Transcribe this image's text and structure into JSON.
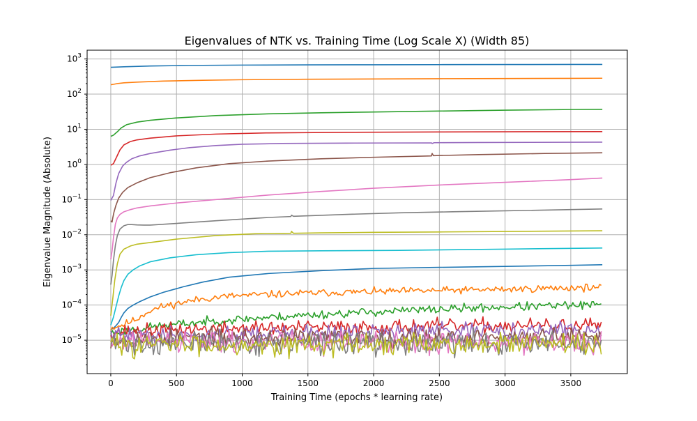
{
  "chart_data": {
    "type": "line",
    "title": "Eigenvalues of NTK vs. Training Time (Log Scale X) (Width 85)",
    "xlabel": "Training Time (epochs * learning rate)",
    "ylabel": "Eigenvalue Magnitude (Absolute)",
    "xlim": [
      -180,
      3930
    ],
    "ylim_log10": [
      -5.95,
      3.25
    ],
    "yscale": "log",
    "grid": true,
    "legend": "none",
    "x_ticks": [
      0,
      500,
      1000,
      1500,
      2000,
      2500,
      3000,
      3500
    ],
    "x_tick_labels": [
      "0",
      "500",
      "1000",
      "1500",
      "2000",
      "2500",
      "3000",
      "3500"
    ],
    "y_tick_exponents": [
      -5,
      -4,
      -3,
      -2,
      -1,
      0,
      1,
      2,
      3
    ],
    "y_tick_labels": [
      {
        "base": "10",
        "exp": "−5"
      },
      {
        "base": "10",
        "exp": "−4"
      },
      {
        "base": "10",
        "exp": "−3"
      },
      {
        "base": "10",
        "exp": "−2"
      },
      {
        "base": "10",
        "exp": "−1"
      },
      {
        "base": "10",
        "exp": "0"
      },
      {
        "base": "10",
        "exp": "1"
      },
      {
        "base": "10",
        "exp": "2"
      },
      {
        "base": "10",
        "exp": "3"
      }
    ],
    "series": [
      {
        "color": "#1f77b4",
        "noisy": false,
        "x": [
          0,
          100,
          300,
          600,
          1000,
          1500,
          2000,
          2500,
          3000,
          3500,
          3740
        ],
        "y": [
          580,
          600,
          630,
          655,
          670,
          680,
          685,
          690,
          695,
          698,
          700
        ]
      },
      {
        "color": "#ff7f0e",
        "noisy": false,
        "x": [
          0,
          20,
          50,
          100,
          200,
          400,
          700,
          1000,
          1500,
          2000,
          2500,
          3000,
          3500,
          3740
        ],
        "y": [
          185,
          190,
          200,
          210,
          220,
          235,
          248,
          257,
          265,
          270,
          275,
          278,
          281,
          283
        ]
      },
      {
        "color": "#2ca02c",
        "noisy": false,
        "x": [
          0,
          20,
          50,
          80,
          120,
          200,
          300,
          500,
          800,
          1200,
          1600,
          2000,
          2500,
          3000,
          3500,
          3740
        ],
        "y": [
          6.3,
          6.8,
          8.5,
          11,
          13.5,
          16,
          18,
          21,
          24.5,
          27.5,
          29.5,
          31,
          33,
          35,
          36.5,
          37
        ]
      },
      {
        "color": "#d62728",
        "noisy": false,
        "x": [
          0,
          20,
          40,
          70,
          100,
          150,
          200,
          300,
          500,
          800,
          1200,
          1800,
          2500,
          3000,
          3740
        ],
        "y": [
          0.95,
          1.05,
          1.5,
          2.6,
          3.6,
          4.5,
          5.0,
          5.6,
          6.5,
          7.3,
          7.9,
          8.2,
          8.4,
          8.5,
          8.6
        ]
      },
      {
        "color": "#9467bd",
        "noisy": false,
        "x": [
          0,
          20,
          40,
          60,
          90,
          120,
          160,
          220,
          300,
          450,
          600,
          800,
          1000,
          1300,
          1800,
          2440,
          2445,
          2460,
          2800,
          3740
        ],
        "y": [
          0.095,
          0.13,
          0.3,
          0.55,
          0.9,
          1.15,
          1.45,
          1.75,
          2.05,
          2.55,
          3.0,
          3.45,
          3.75,
          3.95,
          4.05,
          4.1,
          3.95,
          4.15,
          4.2,
          4.3
        ]
      },
      {
        "color": "#8c564b",
        "noisy": false,
        "x": [
          0,
          5,
          10,
          15,
          25,
          40,
          60,
          90,
          130,
          200,
          300,
          450,
          650,
          900,
          1200,
          1600,
          2000,
          2440,
          2445,
          2455,
          2800,
          3300,
          3740
        ],
        "y": [
          0.025,
          0.024,
          0.023,
          0.03,
          0.045,
          0.07,
          0.11,
          0.16,
          0.22,
          0.3,
          0.42,
          0.58,
          0.8,
          1.05,
          1.25,
          1.45,
          1.6,
          1.75,
          2.05,
          1.78,
          1.9,
          2.05,
          2.15
        ]
      },
      {
        "color": "#e377c2",
        "noisy": false,
        "x": [
          0,
          10,
          20,
          35,
          50,
          70,
          100,
          150,
          200,
          300,
          500,
          800,
          1200,
          1600,
          2000,
          2500,
          3000,
          3500,
          3740
        ],
        "y": [
          0.002,
          0.0035,
          0.008,
          0.02,
          0.03,
          0.038,
          0.045,
          0.052,
          0.058,
          0.066,
          0.08,
          0.1,
          0.135,
          0.17,
          0.21,
          0.26,
          0.31,
          0.37,
          0.41
        ]
      },
      {
        "color": "#7f7f7f",
        "noisy": false,
        "x": [
          0,
          10,
          20,
          35,
          50,
          70,
          100,
          130,
          160,
          200,
          250,
          300,
          500,
          800,
          1200,
          1370,
          1375,
          1390,
          1800,
          2200,
          2600,
          3000,
          3400,
          3740
        ],
        "y": [
          0.00038,
          0.0007,
          0.0018,
          0.005,
          0.0095,
          0.0145,
          0.018,
          0.0195,
          0.0195,
          0.019,
          0.0188,
          0.0188,
          0.021,
          0.025,
          0.031,
          0.033,
          0.036,
          0.0335,
          0.038,
          0.042,
          0.045,
          0.048,
          0.051,
          0.054
        ]
      },
      {
        "color": "#bcbd22",
        "noisy": false,
        "x": [
          0,
          15,
          30,
          50,
          70,
          100,
          150,
          200,
          300,
          500,
          800,
          1100,
          1370,
          1375,
          1390,
          1600,
          2000,
          2500,
          3000,
          3740
        ],
        "y": [
          5e-05,
          0.00015,
          0.0005,
          0.0015,
          0.0028,
          0.0039,
          0.0048,
          0.0054,
          0.006,
          0.0075,
          0.0095,
          0.0107,
          0.011,
          0.0125,
          0.011,
          0.0113,
          0.0117,
          0.012,
          0.0124,
          0.013
        ]
      },
      {
        "color": "#17becf",
        "noisy": false,
        "x": [
          0,
          20,
          40,
          60,
          80,
          100,
          130,
          170,
          220,
          300,
          450,
          650,
          900,
          1200,
          1600,
          2200,
          3000,
          3740
        ],
        "y": [
          2.7e-05,
          4.5e-05,
          9e-05,
          0.00018,
          0.00032,
          0.0005,
          0.00075,
          0.001,
          0.0013,
          0.0017,
          0.0022,
          0.0027,
          0.0031,
          0.0034,
          0.0035,
          0.0036,
          0.0039,
          0.0042
        ]
      },
      {
        "color": "#1f77b4",
        "noisy": false,
        "x": [
          0,
          20,
          40,
          60,
          80,
          100,
          130,
          170,
          220,
          300,
          400,
          550,
          700,
          900,
          1200,
          1600,
          2000,
          2500,
          3000,
          3500,
          3740
        ],
        "y": [
          2e-05,
          2.2e-05,
          2.6e-05,
          3.2e-05,
          4.5e-05,
          6e-05,
          8e-05,
          0.0001,
          0.000125,
          0.00017,
          0.00023,
          0.00033,
          0.00045,
          0.00062,
          0.00079,
          0.00095,
          0.0011,
          0.00118,
          0.00126,
          0.00135,
          0.0014
        ]
      },
      {
        "color": "#ff7f0e",
        "noisy": true,
        "seed": 11,
        "amp": 0.05,
        "x": [
          0,
          50,
          100,
          150,
          200,
          250,
          300,
          400,
          550,
          700,
          900,
          1200,
          1500,
          2000,
          2500,
          3000,
          3500,
          3740
        ],
        "y": [
          2.2e-05,
          2.5e-05,
          2.8e-05,
          3.4e-05,
          4e-05,
          5.5e-05,
          7e-05,
          9.2e-05,
          0.00012,
          0.00015,
          0.00018,
          0.0002,
          0.00022,
          0.00024,
          0.00026,
          0.00028,
          0.00031,
          0.00032
        ]
      },
      {
        "color": "#2ca02c",
        "noisy": true,
        "seed": 23,
        "amp": 0.06,
        "x": [
          0,
          200,
          400,
          700,
          1000,
          1500,
          2000,
          2500,
          3000,
          3500,
          3740
        ],
        "y": [
          1.6e-05,
          2.1e-05,
          2.6e-05,
          3.3e-05,
          4e-05,
          5.2e-05,
          6.4e-05,
          7.6e-05,
          8.8e-05,
          9.7e-05,
          0.0001
        ]
      },
      {
        "color": "#d62728",
        "noisy": true,
        "seed": 37,
        "amp": 0.1,
        "x": [
          0,
          500,
          1000,
          2000,
          3000,
          3740
        ],
        "y": [
          1.7e-05,
          2e-05,
          2.2e-05,
          2.4e-05,
          2.6e-05,
          2.6e-05
        ]
      },
      {
        "color": "#9467bd",
        "noisy": true,
        "seed": 41,
        "amp": 0.12,
        "x": [
          0,
          1000,
          2000,
          3000,
          3740
        ],
        "y": [
          1.3e-05,
          1.5e-05,
          1.7e-05,
          1.8e-05,
          1.9e-05
        ]
      },
      {
        "color": "#8c564b",
        "noisy": true,
        "seed": 53,
        "amp": 0.13,
        "x": [
          0,
          1000,
          2000,
          3000,
          3740
        ],
        "y": [
          1.1e-05,
          1.2e-05,
          1.2e-05,
          1.2e-05,
          1.2e-05
        ]
      },
      {
        "color": "#e377c2",
        "noisy": true,
        "seed": 61,
        "amp": 0.16,
        "x": [
          0,
          1000,
          2000,
          3000,
          3740
        ],
        "y": [
          8.5e-06,
          8.5e-06,
          8.5e-06,
          8.5e-06,
          8.5e-06
        ]
      },
      {
        "color": "#7f7f7f",
        "noisy": true,
        "seed": 71,
        "amp": 0.16,
        "x": [
          0,
          1000,
          2000,
          3000,
          3740
        ],
        "y": [
          8e-06,
          8e-06,
          8e-06,
          8e-06,
          8e-06
        ]
      },
      {
        "color": "#bcbd22",
        "noisy": true,
        "seed": 83,
        "amp": 0.15,
        "x": [
          0,
          1000,
          2000,
          3000,
          3740
        ],
        "y": [
          7.5e-06,
          7.5e-06,
          7.5e-06,
          7.5e-06,
          7.5e-06
        ]
      }
    ]
  }
}
